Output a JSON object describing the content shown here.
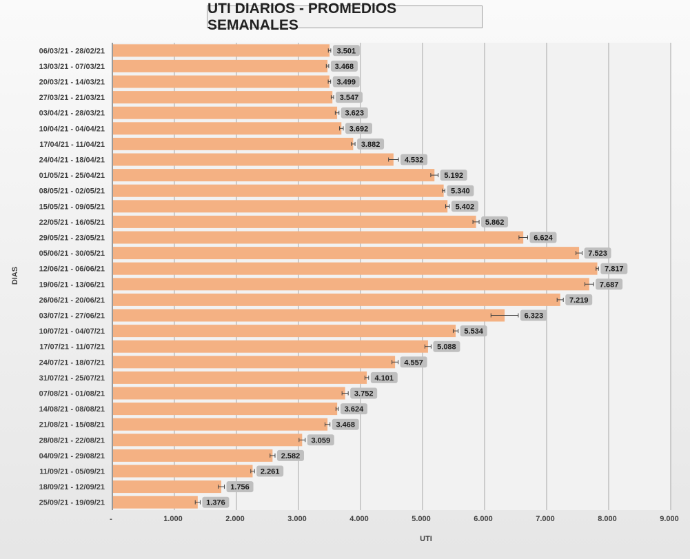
{
  "chart_data": {
    "type": "bar",
    "orientation": "horizontal",
    "title": "UTI DIARIOS - PROMEDIOS SEMANALES",
    "xlabel": "UTI",
    "ylabel": "DIAS",
    "xlim": [
      0,
      9000
    ],
    "x_ticks": [
      "-",
      "1.000",
      "2.000",
      "3.000",
      "4.000",
      "5.000",
      "6.000",
      "7.000",
      "8.000",
      "9.000"
    ],
    "x_tick_values": [
      0,
      1000,
      2000,
      3000,
      4000,
      5000,
      6000,
      7000,
      8000,
      9000
    ],
    "grid": "vertical",
    "error_bars": true,
    "bar_color": "#f4b183",
    "label_bg": "#bfbfbf",
    "categories": [
      "06/03/21 - 28/02/21",
      "13/03/21 - 07/03/21",
      "20/03/21 - 14/03/21",
      "27/03/21 - 21/03/21",
      "03/04/21 - 28/03/21",
      "10/04/21 - 04/04/21",
      "17/04/21 - 11/04/21",
      "24/04/21 - 18/04/21",
      "01/05/21 - 25/04/21",
      "08/05/21 - 02/05/21",
      "15/05/21 - 09/05/21",
      "22/05/21 - 16/05/21",
      "29/05/21 - 23/05/21",
      "05/06/21 - 30/05/21",
      "12/06/21 - 06/06/21",
      "19/06/21 - 13/06/21",
      "26/06/21 - 20/06/21",
      "03/07/21 - 27/06/21",
      "10/07/21 - 04/07/21",
      "17/07/21 - 11/07/21",
      "24/07/21 - 18/07/21",
      "31/07/21 - 25/07/21",
      "07/08/21 - 01/08/21",
      "14/08/21 - 08/08/21",
      "21/08/21 - 15/08/21",
      "28/08/21 - 22/08/21",
      "04/09/21 - 29/08/21",
      "11/09/21 - 05/09/21",
      "18/09/21 - 12/09/21",
      "25/09/21 - 19/09/21"
    ],
    "values": [
      3501,
      3468,
      3499,
      3547,
      3623,
      3692,
      3882,
      4532,
      5192,
      5340,
      5402,
      5862,
      6624,
      7523,
      7817,
      7687,
      7219,
      6323,
      5534,
      5088,
      4557,
      4101,
      3752,
      3624,
      3468,
      3059,
      2582,
      2261,
      1756,
      1376
    ],
    "value_labels": [
      "3.501",
      "3.468",
      "3.499",
      "3.547",
      "3.623",
      "3.692",
      "3.882",
      "4.532",
      "5.192",
      "5.340",
      "5.402",
      "5.862",
      "6.624",
      "7.523",
      "7.817",
      "7.687",
      "7.219",
      "6.323",
      "5.534",
      "5.088",
      "4.557",
      "4.101",
      "3.752",
      "3.624",
      "3.468",
      "3.059",
      "2.582",
      "2.261",
      "1.756",
      "1.376"
    ],
    "errors": [
      20,
      20,
      20,
      20,
      30,
      30,
      30,
      80,
      60,
      20,
      30,
      50,
      70,
      50,
      20,
      70,
      50,
      220,
      40,
      50,
      50,
      30,
      50,
      20,
      40,
      50,
      40,
      30,
      50,
      40
    ]
  }
}
